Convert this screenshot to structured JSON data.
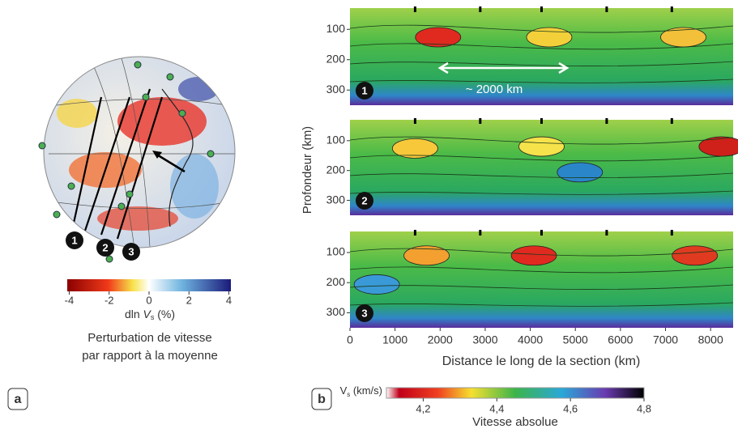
{
  "panel_a": {
    "label": "a",
    "markers": [
      "1",
      "2",
      "3"
    ],
    "colorbar": {
      "lim": [
        -4.1,
        4.1
      ],
      "ticks": [
        -4,
        -2,
        0,
        2,
        4
      ],
      "title": {
        "prefix": "dln ",
        "symbol": "V",
        "subscript": "s",
        "suffix": " (%)"
      }
    },
    "caption": [
      "Perturbation de vitesse",
      "par rapport à la moyenne"
    ]
  },
  "panel_b": {
    "label": "b",
    "y_title": "Profondeur (km)",
    "x_title": "Distance le long de la section (km)",
    "xlim": [
      0,
      8500
    ],
    "xticks": [
      0,
      1000,
      2000,
      3000,
      4000,
      5000,
      6000,
      7000,
      8000
    ],
    "annotation": "~ 2000 km",
    "sections": [
      {
        "label": "1",
        "ylim": [
          30,
          350
        ],
        "yticks": [
          100,
          200,
          300
        ]
      },
      {
        "label": "2",
        "ylim": [
          30,
          350
        ],
        "yticks": [
          100,
          200,
          300
        ]
      },
      {
        "label": "3",
        "ylim": [
          30,
          350
        ],
        "yticks": [
          100,
          200,
          300
        ]
      }
    ],
    "colorbar": {
      "lim": [
        4.1,
        4.8
      ],
      "ticks": [
        {
          "value": 4.2,
          "label": "4,2"
        },
        {
          "value": 4.4,
          "label": "4,4"
        },
        {
          "value": 4.6,
          "label": "4,6"
        },
        {
          "value": 4.8,
          "label": "4,8"
        }
      ],
      "title": {
        "symbol": "V",
        "subscript": "s",
        "suffix": " (km/s)"
      },
      "caption": "Vitesse absolue"
    }
  }
}
